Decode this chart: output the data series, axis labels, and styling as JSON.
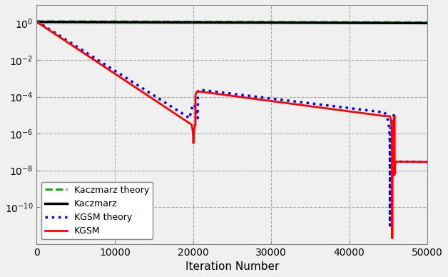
{
  "title": "",
  "xlabel": "Iteration Number",
  "ylabel": "",
  "xlim": [
    0,
    50000
  ],
  "ylim_log": [
    -12,
    1
  ],
  "xticks": [
    0,
    10000,
    20000,
    30000,
    40000,
    50000
  ],
  "yticks_log": [
    0,
    -2,
    -4,
    -6,
    -8,
    -10
  ],
  "grid_color": "#aaaaaa",
  "bg_color": "#f0f0f0",
  "legend_labels": [
    "Kaczmarz",
    "Kaczmarz theory",
    "KGSM",
    "KGSM theory"
  ],
  "kaczmarz_color": "#000000",
  "kaczmarz_theory_color": "#00aa00",
  "kgsm_color": "#ff0000",
  "kgsm_theory_color": "#0000ff"
}
